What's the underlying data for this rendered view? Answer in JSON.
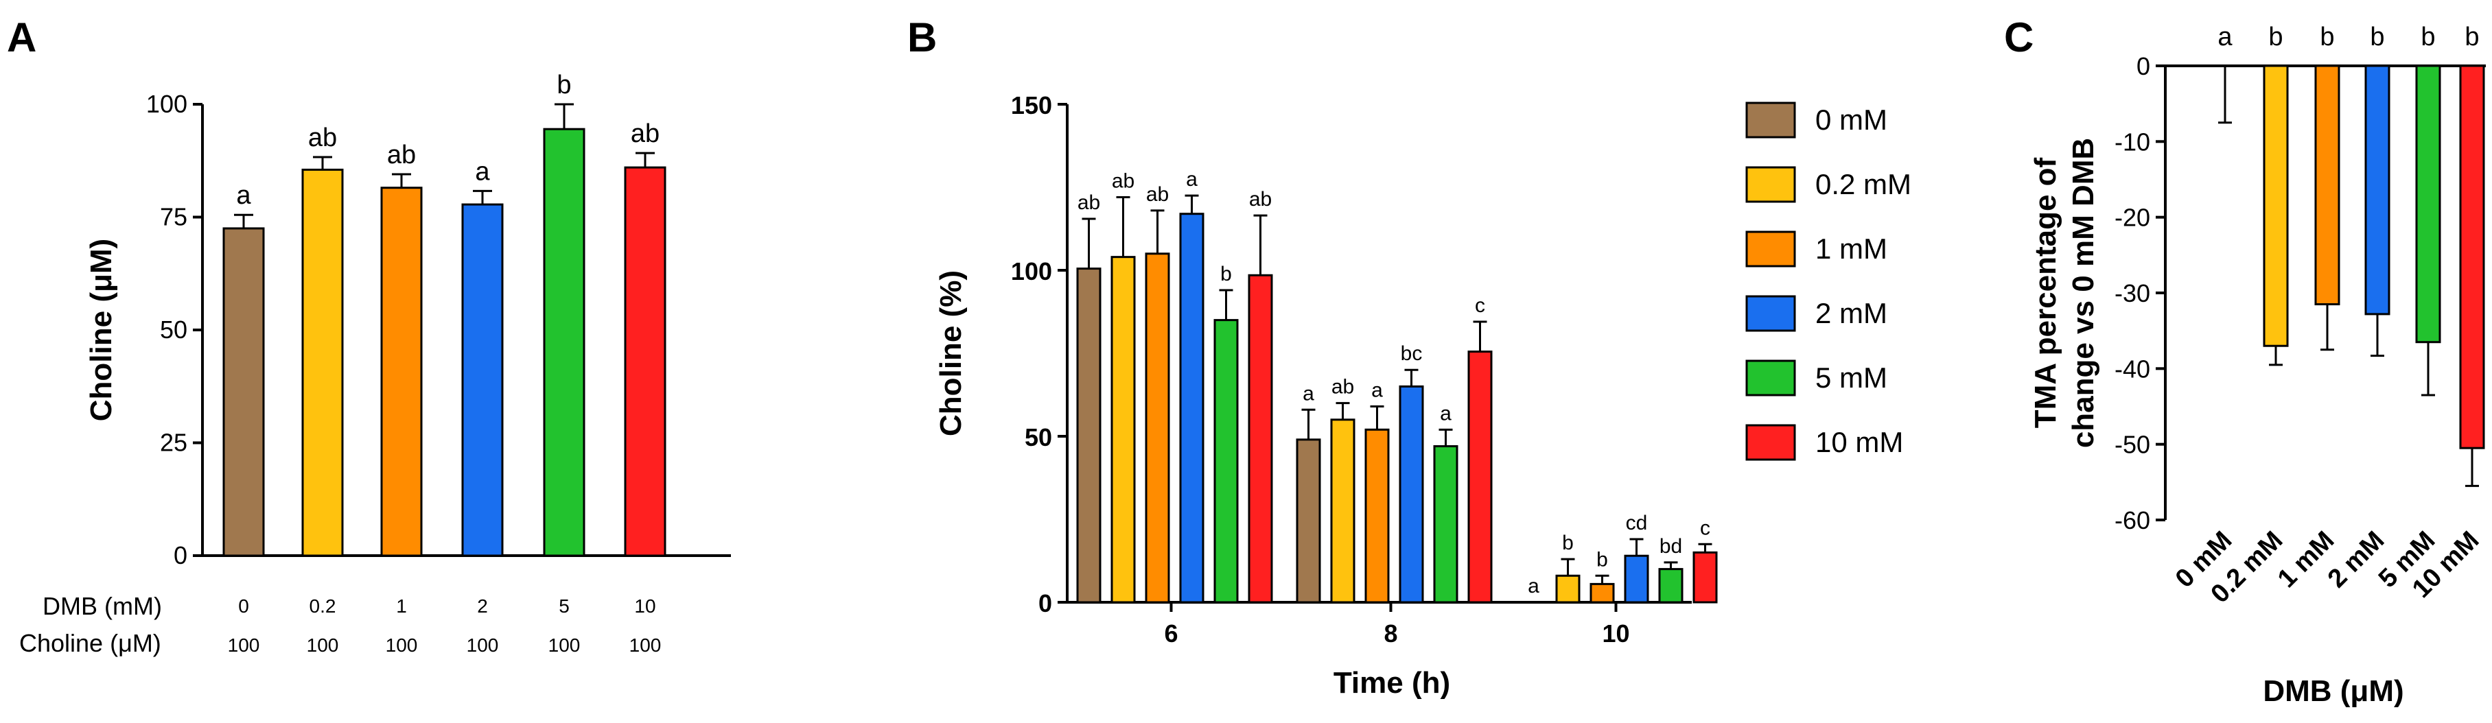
{
  "colors": {
    "0 mM": "#A0784E",
    "0.2 mM": "#FFC20E",
    "1 mM": "#FF8C00",
    "2 mM": "#1A6FEF",
    "5 mM": "#22C22E",
    "10 mM": "#FF2020"
  },
  "chart_data": [
    {
      "panel": "A",
      "type": "bar",
      "ylabel": "Choline (μM)",
      "ylim": [
        0,
        100
      ],
      "yticks": [
        "0",
        "25",
        "50",
        "75",
        "100"
      ],
      "categories": [
        "0 mM",
        "0.2 mM",
        "1 mM",
        "2 mM",
        "5 mM",
        "10 mM"
      ],
      "values": [
        72.5,
        85.5,
        81.5,
        77.8,
        94.5,
        86.0
      ],
      "errors": [
        3.0,
        2.8,
        3.0,
        3.0,
        5.5,
        3.2
      ],
      "significance": [
        "a",
        "ab",
        "ab",
        "a",
        "b",
        "ab"
      ],
      "row_labels": [
        "DMB (mM)",
        "Choline (μM)"
      ],
      "dmb_values": [
        "0",
        "0.2",
        "1",
        "2",
        "5",
        "10"
      ],
      "choline_values": [
        "100",
        "100",
        "100",
        "100",
        "100",
        "100"
      ]
    },
    {
      "panel": "B",
      "type": "bar",
      "xlabel": "Time (h)",
      "ylabel": "Choline (%)",
      "ylim": [
        0,
        150
      ],
      "yticks": [
        "0",
        "50",
        "100",
        "150"
      ],
      "groups": [
        "6",
        "8",
        "10"
      ],
      "series": [
        {
          "name": "0 mM",
          "values": [
            100.5,
            49,
            0
          ],
          "errors": [
            15,
            9,
            0
          ],
          "significance": [
            "ab",
            "a",
            "a"
          ]
        },
        {
          "name": "0.2 mM",
          "values": [
            104,
            55,
            8
          ],
          "errors": [
            18,
            5,
            5
          ],
          "significance": [
            "ab",
            "ab",
            "b"
          ]
        },
        {
          "name": "1 mM",
          "values": [
            105,
            52,
            5.5
          ],
          "errors": [
            13,
            7,
            2.5
          ],
          "significance": [
            "ab",
            "a",
            "b"
          ]
        },
        {
          "name": "2 mM",
          "values": [
            117,
            65,
            14
          ],
          "errors": [
            5.5,
            5,
            5
          ],
          "significance": [
            "a",
            "bc",
            "cd"
          ]
        },
        {
          "name": "5 mM",
          "values": [
            85,
            47,
            10
          ],
          "errors": [
            9,
            5,
            2
          ],
          "significance": [
            "b",
            "a",
            "bd"
          ]
        },
        {
          "name": "10 mM",
          "values": [
            98.5,
            75.5,
            15
          ],
          "errors": [
            18,
            9,
            2.5
          ],
          "significance": [
            "ab",
            "c",
            "c"
          ]
        }
      ],
      "legend": [
        "0 mM",
        "0.2 mM",
        "1 mM",
        "2 mM",
        "5 mM",
        "10 mM"
      ]
    },
    {
      "panel": "C",
      "type": "bar",
      "xlabel": "DMB (μM)",
      "ylabel_lines": [
        "TMA percentage of",
        "change vs 0 mM DMB"
      ],
      "ylim": [
        -60,
        0
      ],
      "yticks": [
        "0",
        "-10",
        "-20",
        "-30",
        "-40",
        "-50",
        "-60"
      ],
      "categories": [
        "0 mM",
        "0.2 mM",
        "1 mM",
        "2 mM",
        "5 mM",
        "10 mM"
      ],
      "values": [
        0,
        -37,
        -31.5,
        -32.8,
        -36.5,
        -50.5
      ],
      "errors": [
        7.5,
        2.5,
        6,
        5.5,
        7,
        5
      ],
      "significance": [
        "a",
        "b",
        "b",
        "b",
        "b",
        "b"
      ]
    }
  ]
}
